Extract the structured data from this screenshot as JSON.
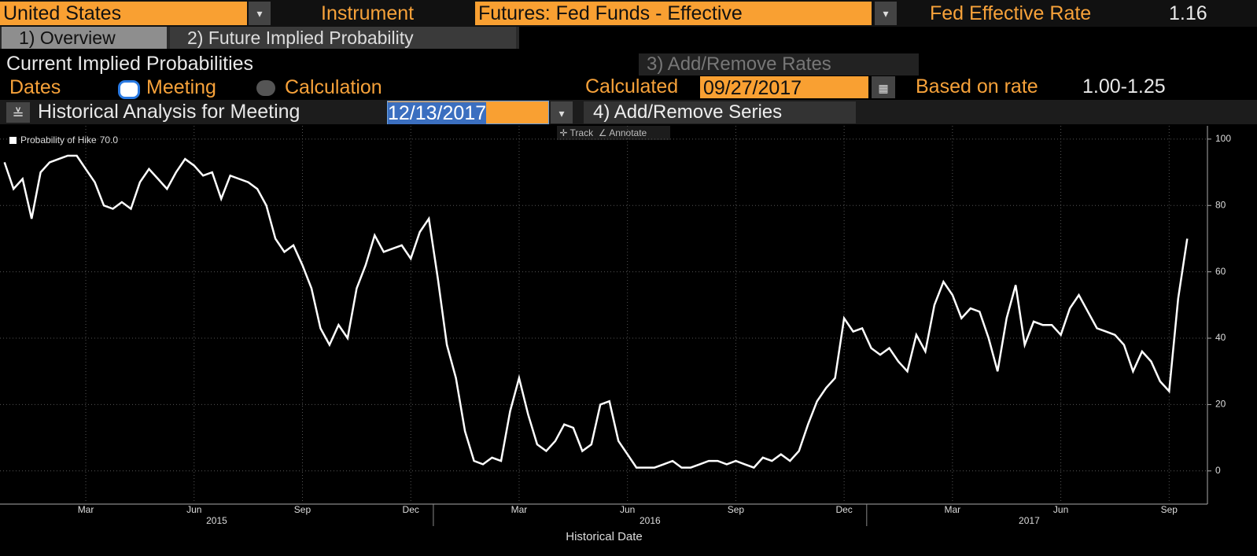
{
  "top_bar": {
    "country": "United States",
    "instrument_label": "Instrument",
    "instrument": "Futures: Fed Funds - Effective",
    "rate_label": "Fed Effective Rate",
    "rate_value": "1.16"
  },
  "tabs": [
    "1) Overview",
    "2) Future Implied Probability"
  ],
  "panel": {
    "title": "Current Implied Probabilities",
    "add_rates": "3) Add/Remove Rates",
    "dates_label": "Dates",
    "option_meeting": "Meeting",
    "option_calculation": "Calculation",
    "calculated_label": "Calculated",
    "calculated_date": "09/27/2017",
    "based_label": "Based on rate",
    "based_value": "1.00-1.25",
    "historical_label": "Historical Analysis for Meeting",
    "meeting_date": "12/13/2017",
    "add_series": "4) Add/Remove Series",
    "track": "Track",
    "annotate": "Annotate"
  },
  "chart_data": {
    "type": "line",
    "xlabel": "Historical Date",
    "categories": [
      null,
      null,
      null,
      null,
      null,
      null,
      null,
      null,
      null,
      "Mar",
      null,
      null,
      null,
      null,
      null,
      null,
      null,
      null,
      null,
      null,
      null,
      "Jun",
      null,
      null,
      null,
      null,
      null,
      null,
      null,
      null,
      null,
      null,
      null,
      "Sep",
      null,
      null,
      null,
      null,
      null,
      null,
      null,
      null,
      null,
      null,
      null,
      "Dec",
      null,
      null,
      null,
      null,
      null,
      null,
      null,
      null,
      null,
      null,
      null,
      "Mar",
      null,
      null,
      null,
      null,
      null,
      null,
      null,
      null,
      null,
      null,
      null,
      "Jun",
      null,
      null,
      null,
      null,
      null,
      null,
      null,
      null,
      null,
      null,
      null,
      "Sep",
      null,
      null,
      null,
      null,
      null,
      null,
      null,
      null,
      null,
      null,
      null,
      "Dec",
      null,
      null,
      null,
      null,
      null,
      null,
      null,
      null,
      null,
      null,
      null,
      "Mar",
      null,
      null,
      null,
      null,
      null,
      null,
      null,
      null,
      null,
      null,
      null,
      "Jun",
      null,
      null,
      null,
      null,
      null,
      null,
      null,
      null,
      null,
      null,
      null,
      "Sep",
      null,
      null
    ],
    "x_groups": [
      "2015",
      "2016",
      "2017"
    ],
    "series": [
      {
        "name": "Probability of Hike",
        "last_label": "70.0",
        "color": "#ffffff",
        "values": [
          93,
          85,
          88,
          76,
          90,
          93,
          94,
          95,
          95,
          91,
          87,
          80,
          79,
          81,
          79,
          87,
          91,
          88,
          85,
          90,
          94,
          92,
          89,
          90,
          82,
          89,
          88,
          87,
          85,
          80,
          70,
          66,
          68,
          62,
          55,
          43,
          38,
          44,
          40,
          55,
          62,
          71,
          66,
          67,
          68,
          64,
          72,
          76,
          58,
          38,
          28,
          12,
          3,
          2,
          4,
          3,
          18,
          28,
          17,
          8,
          6,
          9,
          14,
          13,
          6,
          8,
          20,
          21,
          9,
          5,
          1,
          1,
          1,
          2,
          3,
          1,
          1,
          2,
          3,
          3,
          2,
          3,
          2,
          1,
          4,
          3,
          5,
          3,
          6,
          14,
          21,
          25,
          28,
          46,
          42,
          43,
          37,
          35,
          37,
          33,
          30,
          41,
          36,
          50,
          57,
          53,
          46,
          49,
          48,
          40,
          30,
          46,
          56,
          38,
          45,
          44,
          44,
          41,
          49,
          53,
          48,
          43,
          42,
          41,
          38,
          30,
          36,
          33,
          27,
          24,
          52,
          70
        ]
      }
    ],
    "ylim": [
      -10,
      104
    ],
    "yticks": [
      0,
      20,
      40,
      60,
      80,
      100
    ],
    "grid": true
  }
}
